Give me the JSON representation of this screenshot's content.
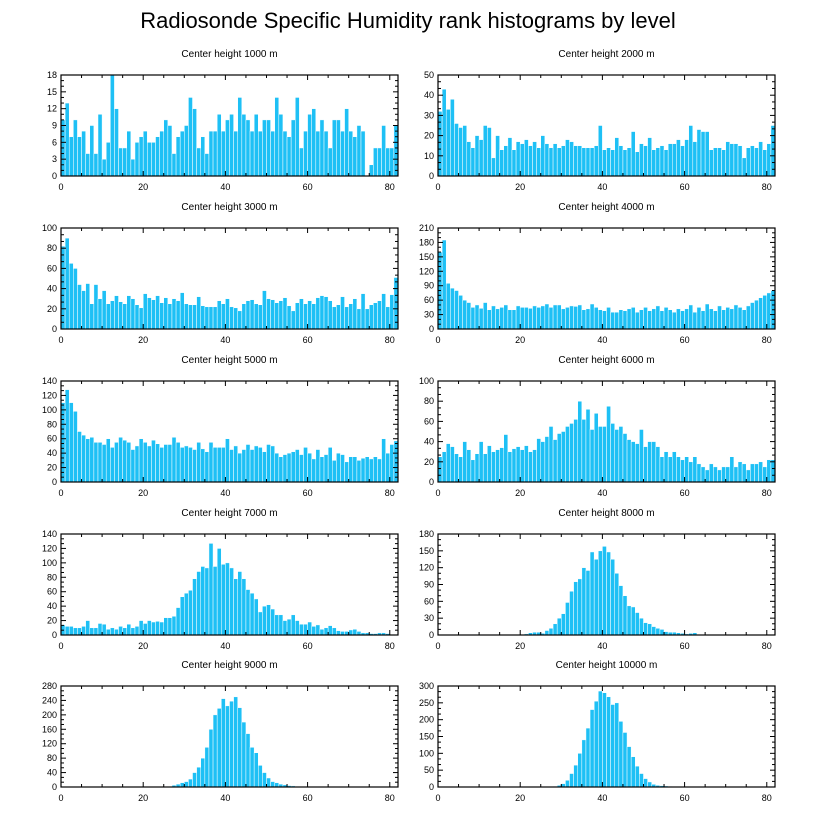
{
  "title": "Radiosonde Specific Humidity rank histograms by level",
  "colors": {
    "bar": "#1ec0f5",
    "bar_edge": "#ffffff",
    "axis": "#000000"
  },
  "chart_data": [
    {
      "type": "bar",
      "title": "Center height 1000 m",
      "xlim": [
        0,
        82
      ],
      "xticks": [
        0,
        20,
        40,
        60,
        80
      ],
      "ylim": [
        0,
        18
      ],
      "yticks": [
        0,
        3,
        6,
        9,
        12,
        15,
        18
      ],
      "values": [
        10,
        13,
        7,
        10,
        7,
        8,
        4,
        9,
        4,
        11,
        3,
        6,
        18,
        12,
        5,
        5,
        8,
        3,
        6,
        7,
        8,
        6,
        6,
        7,
        8,
        10,
        9,
        4,
        7,
        8,
        9,
        14,
        12,
        5,
        7,
        4,
        8,
        8,
        11,
        8,
        10,
        11,
        8,
        14,
        11,
        10,
        8,
        11,
        8,
        10,
        10,
        8,
        14,
        11,
        8,
        7,
        10,
        14,
        5,
        8,
        11,
        12,
        8,
        10,
        8,
        5,
        10,
        10,
        8,
        12,
        8,
        7,
        9,
        8,
        0,
        2,
        5,
        5,
        9,
        5,
        5,
        9
      ]
    },
    {
      "type": "bar",
      "title": "Center height 2000 m",
      "xlim": [
        0,
        82
      ],
      "xticks": [
        0,
        20,
        40,
        60,
        80
      ],
      "ylim": [
        0,
        50
      ],
      "yticks": [
        0,
        10,
        20,
        30,
        40,
        50
      ],
      "values": [
        32,
        43,
        33,
        38,
        26,
        24,
        25,
        17,
        14,
        20,
        18,
        25,
        24,
        9,
        20,
        13,
        15,
        19,
        13,
        17,
        16,
        18,
        15,
        17,
        14,
        20,
        16,
        14,
        16,
        14,
        15,
        18,
        17,
        15,
        15,
        14,
        14,
        14,
        15,
        25,
        13,
        14,
        13,
        19,
        15,
        13,
        14,
        22,
        12,
        16,
        15,
        19,
        13,
        14,
        15,
        13,
        16,
        16,
        18,
        15,
        18,
        25,
        17,
        23,
        22,
        22,
        13,
        14,
        14,
        13,
        17,
        16,
        16,
        15,
        9,
        14,
        15,
        14,
        17,
        13,
        16,
        25
      ]
    },
    {
      "type": "bar",
      "title": "Center height 3000 m",
      "xlim": [
        0,
        82
      ],
      "xticks": [
        0,
        20,
        40,
        60,
        80
      ],
      "ylim": [
        0,
        100
      ],
      "yticks": [
        0,
        20,
        40,
        60,
        80,
        100
      ],
      "values": [
        82,
        90,
        65,
        60,
        44,
        38,
        45,
        25,
        44,
        30,
        38,
        25,
        28,
        33,
        27,
        25,
        33,
        30,
        24,
        21,
        35,
        31,
        29,
        33,
        26,
        31,
        25,
        30,
        28,
        36,
        25,
        24,
        24,
        32,
        23,
        22,
        22,
        22,
        28,
        25,
        30,
        22,
        21,
        18,
        25,
        28,
        29,
        25,
        24,
        38,
        30,
        29,
        26,
        28,
        31,
        23,
        18,
        26,
        30,
        25,
        28,
        25,
        31,
        33,
        32,
        28,
        22,
        24,
        32,
        22,
        25,
        30,
        20,
        35,
        20,
        24,
        26,
        28,
        35,
        22,
        34,
        51
      ]
    },
    {
      "type": "bar",
      "title": "Center height 4000 m",
      "xlim": [
        0,
        82
      ],
      "xticks": [
        0,
        20,
        40,
        60,
        80
      ],
      "ylim": [
        0,
        210
      ],
      "yticks": [
        0,
        30,
        60,
        90,
        120,
        150,
        180,
        210
      ],
      "values": [
        160,
        185,
        95,
        85,
        80,
        70,
        60,
        55,
        45,
        50,
        43,
        55,
        40,
        48,
        42,
        45,
        50,
        40,
        40,
        48,
        45,
        45,
        43,
        48,
        45,
        48,
        52,
        45,
        50,
        50,
        42,
        45,
        48,
        47,
        50,
        40,
        42,
        52,
        45,
        40,
        38,
        45,
        35,
        35,
        40,
        38,
        42,
        45,
        35,
        40,
        45,
        38,
        42,
        48,
        38,
        45,
        40,
        35,
        42,
        38,
        42,
        50,
        35,
        45,
        38,
        52,
        42,
        38,
        48,
        40,
        45,
        42,
        50,
        45,
        40,
        48,
        55,
        60,
        65,
        70,
        75,
        80
      ]
    },
    {
      "type": "bar",
      "title": "Center height 5000 m",
      "xlim": [
        0,
        82
      ],
      "xticks": [
        0,
        20,
        40,
        60,
        80
      ],
      "ylim": [
        0,
        140
      ],
      "yticks": [
        0,
        20,
        40,
        60,
        80,
        100,
        120,
        140
      ],
      "values": [
        110,
        128,
        110,
        98,
        70,
        65,
        60,
        62,
        55,
        55,
        52,
        60,
        48,
        55,
        62,
        58,
        55,
        45,
        50,
        60,
        55,
        50,
        58,
        53,
        48,
        52,
        52,
        62,
        55,
        48,
        50,
        48,
        45,
        55,
        46,
        42,
        55,
        48,
        48,
        48,
        60,
        45,
        50,
        40,
        45,
        52,
        45,
        50,
        48,
        42,
        52,
        50,
        40,
        35,
        38,
        40,
        42,
        45,
        38,
        48,
        40,
        32,
        45,
        35,
        38,
        48,
        30,
        40,
        38,
        28,
        35,
        35,
        30,
        33,
        35,
        32,
        35,
        32,
        60,
        40,
        52,
        57
      ]
    },
    {
      "type": "bar",
      "title": "Center height 6000 m",
      "xlim": [
        0,
        82
      ],
      "xticks": [
        0,
        20,
        40,
        60,
        80
      ],
      "ylim": [
        0,
        100
      ],
      "yticks": [
        0,
        20,
        40,
        60,
        80,
        100
      ],
      "values": [
        25,
        30,
        38,
        35,
        28,
        25,
        40,
        32,
        22,
        28,
        40,
        28,
        36,
        30,
        32,
        34,
        47,
        30,
        33,
        35,
        32,
        36,
        30,
        32,
        43,
        40,
        45,
        55,
        42,
        48,
        50,
        55,
        58,
        62,
        80,
        62,
        72,
        52,
        68,
        55,
        55,
        75,
        58,
        52,
        55,
        48,
        42,
        40,
        38,
        52,
        35,
        40,
        40,
        35,
        25,
        30,
        25,
        30,
        25,
        22,
        25,
        20,
        25,
        18,
        15,
        12,
        18,
        15,
        12,
        15,
        15,
        25,
        15,
        20,
        18,
        12,
        18,
        18,
        20,
        15,
        22,
        22
      ]
    },
    {
      "type": "bar",
      "title": "Center height 7000 m",
      "xlim": [
        0,
        82
      ],
      "xticks": [
        0,
        20,
        40,
        60,
        80
      ],
      "ylim": [
        0,
        140
      ],
      "yticks": [
        0,
        20,
        40,
        60,
        80,
        100,
        120,
        140
      ],
      "values": [
        14,
        12,
        12,
        10,
        10,
        12,
        20,
        10,
        10,
        16,
        15,
        8,
        10,
        8,
        12,
        10,
        15,
        10,
        12,
        20,
        16,
        20,
        18,
        19,
        18,
        24,
        24,
        26,
        38,
        53,
        58,
        62,
        78,
        88,
        95,
        93,
        127,
        95,
        120,
        98,
        100,
        93,
        78,
        88,
        78,
        63,
        58,
        50,
        32,
        40,
        42,
        36,
        28,
        28,
        20,
        22,
        28,
        20,
        15,
        15,
        18,
        12,
        14,
        8,
        10,
        13,
        10,
        6,
        5,
        5,
        7,
        8,
        5,
        3,
        3,
        2,
        2,
        3,
        3,
        2,
        1,
        1
      ]
    },
    {
      "type": "bar",
      "title": "Center height 8000 m",
      "xlim": [
        0,
        82
      ],
      "xticks": [
        0,
        20,
        40,
        60,
        80
      ],
      "ylim": [
        0,
        180
      ],
      "yticks": [
        0,
        30,
        60,
        90,
        120,
        150,
        180
      ],
      "values": [
        0,
        0,
        0,
        0,
        0,
        0,
        0,
        0,
        0,
        0,
        0,
        0,
        0,
        0,
        0,
        0,
        0,
        0,
        0,
        0,
        0,
        2,
        4,
        5,
        5,
        3,
        8,
        12,
        20,
        30,
        38,
        58,
        78,
        95,
        100,
        120,
        115,
        148,
        135,
        150,
        158,
        148,
        135,
        110,
        88,
        70,
        52,
        50,
        40,
        30,
        22,
        20,
        15,
        12,
        10,
        6,
        5,
        5,
        4,
        3,
        2,
        3,
        4,
        0,
        0,
        0,
        0,
        0,
        0,
        0,
        0,
        0,
        0,
        0,
        0,
        0,
        0,
        0,
        0,
        0,
        0,
        0
      ]
    },
    {
      "type": "bar",
      "title": "Center height 9000 m",
      "xlim": [
        0,
        82
      ],
      "xticks": [
        0,
        20,
        40,
        60,
        80
      ],
      "ylim": [
        0,
        280
      ],
      "yticks": [
        0,
        40,
        80,
        120,
        160,
        200,
        240,
        280
      ],
      "values": [
        0,
        0,
        0,
        0,
        0,
        0,
        0,
        0,
        0,
        0,
        0,
        0,
        0,
        0,
        0,
        0,
        0,
        0,
        0,
        0,
        0,
        0,
        0,
        0,
        0,
        0,
        2,
        5,
        8,
        12,
        15,
        22,
        40,
        55,
        80,
        110,
        160,
        200,
        218,
        245,
        225,
        238,
        250,
        220,
        180,
        148,
        110,
        95,
        60,
        40,
        25,
        15,
        12,
        8,
        6,
        4,
        3,
        2,
        1,
        0,
        0,
        0,
        0,
        0,
        0,
        0,
        0,
        0,
        0,
        0,
        0,
        0,
        0,
        0,
        0,
        0,
        0,
        0,
        0,
        0,
        0,
        0
      ]
    },
    {
      "type": "bar",
      "title": "Center height 10000 m",
      "xlim": [
        0,
        82
      ],
      "xticks": [
        0,
        20,
        40,
        60,
        80
      ],
      "ylim": [
        0,
        300
      ],
      "yticks": [
        0,
        50,
        100,
        150,
        200,
        250,
        300
      ],
      "values": [
        0,
        0,
        0,
        0,
        0,
        0,
        0,
        0,
        0,
        0,
        0,
        0,
        0,
        0,
        0,
        0,
        0,
        0,
        0,
        0,
        0,
        0,
        0,
        0,
        0,
        0,
        0,
        0,
        2,
        5,
        10,
        20,
        40,
        65,
        100,
        140,
        175,
        230,
        255,
        285,
        280,
        268,
        245,
        250,
        195,
        162,
        120,
        90,
        62,
        40,
        25,
        15,
        8,
        5,
        4,
        3,
        2,
        1,
        0,
        0,
        0,
        0,
        0,
        0,
        0,
        0,
        0,
        0,
        0,
        0,
        0,
        0,
        0,
        0,
        0,
        0,
        0,
        0,
        0,
        0,
        0,
        0
      ]
    }
  ]
}
